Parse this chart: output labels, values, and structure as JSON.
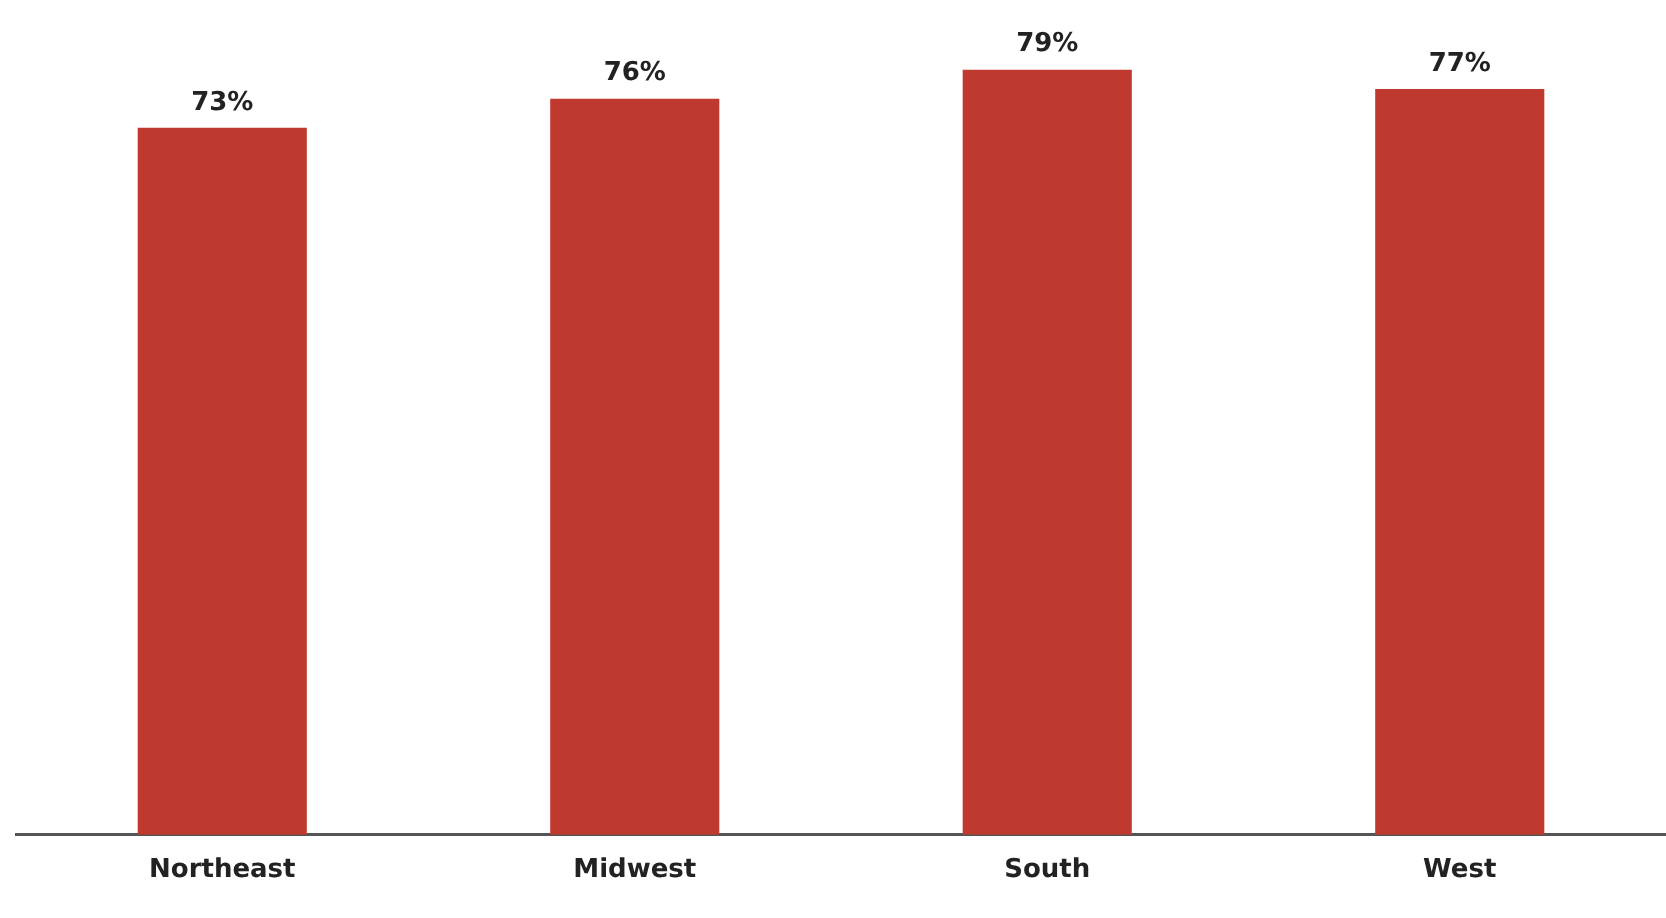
{
  "chart_data": {
    "type": "bar",
    "categories": [
      "Northeast",
      "Midwest",
      "South",
      "West"
    ],
    "values": [
      73,
      76,
      79,
      77
    ],
    "value_labels": [
      "73%",
      "76%",
      "79%",
      "77%"
    ],
    "color": "#c0392f",
    "grid": false,
    "legend": false,
    "tick_labels": "x"
  }
}
